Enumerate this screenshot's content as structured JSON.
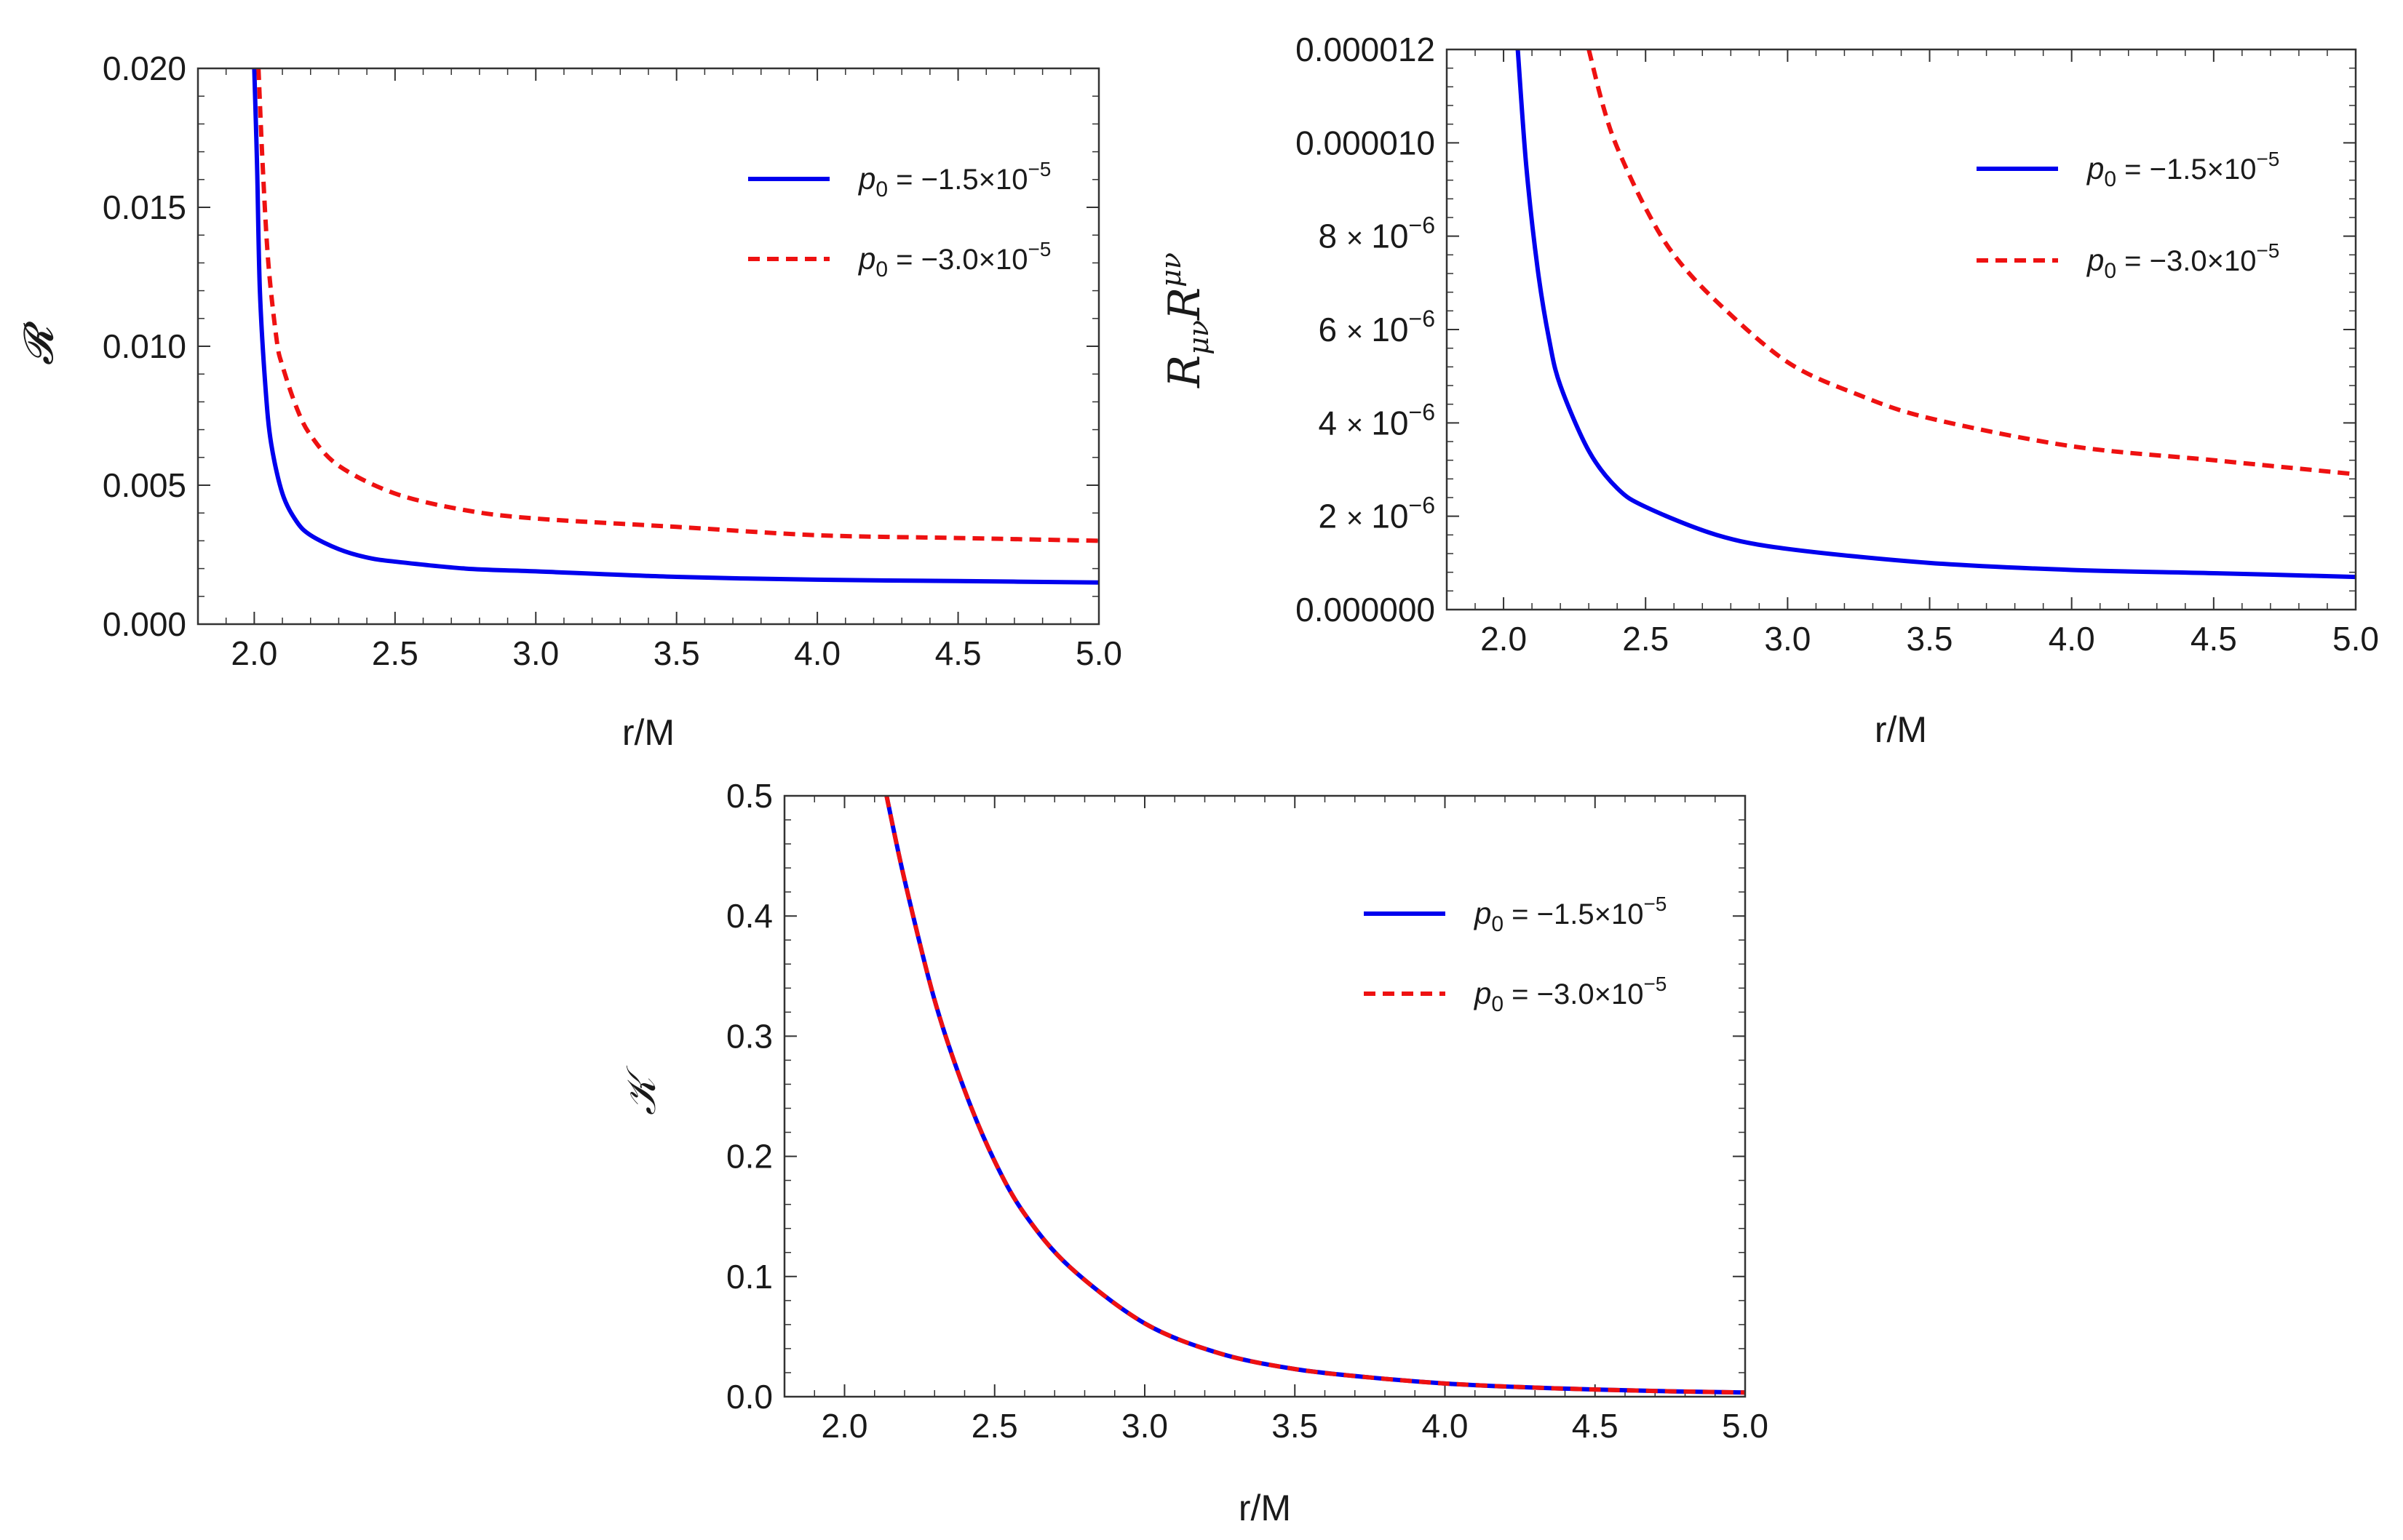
{
  "chart_data": [
    {
      "id": "R",
      "type": "line",
      "title": "",
      "xlabel": "r/M",
      "ylabel": "𝓡",
      "xlim": [
        1.8,
        5.0
      ],
      "ylim": [
        0.0,
        0.02
      ],
      "xticks": [
        2.0,
        2.5,
        3.0,
        3.5,
        4.0,
        4.5,
        5.0
      ],
      "xtick_labels": [
        "2.0",
        "2.5",
        "3.0",
        "3.5",
        "4.0",
        "4.5",
        "5.0"
      ],
      "yticks": [
        0.0,
        0.005,
        0.01,
        0.015,
        0.02
      ],
      "ytick_labels": [
        "0.000",
        "0.005",
        "0.010",
        "0.015",
        "0.020"
      ],
      "legend_position": "top-right",
      "grid": false,
      "series": [
        {
          "name": "p0 = −1.5×10^−5",
          "label_main": "p",
          "label_sub": "0",
          "label_rest": "= −1.5×10",
          "label_sup": "−5",
          "color": "#0000ee",
          "dash": "solid",
          "x": [
            2.0,
            2.01,
            2.02,
            2.04,
            2.06,
            2.1,
            2.15,
            2.2,
            2.3,
            2.4,
            2.5,
            2.75,
            3.0,
            3.5,
            4.0,
            4.5,
            5.0
          ],
          "y": [
            0.02,
            0.0165,
            0.012,
            0.0085,
            0.0065,
            0.0047,
            0.0037,
            0.0032,
            0.0027,
            0.0024,
            0.00225,
            0.002,
            0.0019,
            0.0017,
            0.0016,
            0.00155,
            0.0015
          ]
        },
        {
          "name": "p0 = −3.0×10^−5",
          "label_main": "p",
          "label_sub": "0",
          "label_rest": "= −3.0×10",
          "label_sup": "−5",
          "color": "#ee1111",
          "dash": "dashed",
          "x": [
            2.015,
            2.03,
            2.05,
            2.08,
            2.1,
            2.15,
            2.2,
            2.3,
            2.5,
            2.75,
            3.0,
            3.5,
            4.0,
            4.5,
            5.0
          ],
          "y": [
            0.02,
            0.0165,
            0.013,
            0.0102,
            0.0093,
            0.0078,
            0.0068,
            0.0057,
            0.0047,
            0.0041,
            0.0038,
            0.0035,
            0.0032,
            0.0031,
            0.003
          ]
        }
      ]
    },
    {
      "id": "RR",
      "type": "line",
      "title": "",
      "xlabel": "r/M",
      "ylabel": "R_{μν}R^{μν}",
      "ylabel_main1": "R",
      "ylabel_sub": "μν",
      "ylabel_main2": "R",
      "ylabel_sup": "μν",
      "xlim": [
        1.8,
        5.0
      ],
      "ylim": [
        0.0,
        1.2e-05
      ],
      "xticks": [
        2.0,
        2.5,
        3.0,
        3.5,
        4.0,
        4.5,
        5.0
      ],
      "xtick_labels": [
        "2.0",
        "2.5",
        "3.0",
        "3.5",
        "4.0",
        "4.5",
        "5.0"
      ],
      "yticks": [
        0.0,
        2e-06,
        4e-06,
        6e-06,
        8e-06,
        1e-05,
        1.2e-05
      ],
      "ytick_labels": [
        "0.000000",
        "2×10",
        "4×10",
        "6×10",
        "8×10",
        "0.000010",
        "0.000012"
      ],
      "ytick_sups": [
        "",
        "−6",
        "−6",
        "−6",
        "−6",
        "",
        ""
      ],
      "legend_position": "top-right",
      "grid": false,
      "series": [
        {
          "name": "p0 = −1.5×10^−5",
          "label_main": "p",
          "label_sub": "0",
          "label_rest": "= −1.5×10",
          "label_sup": "−5",
          "color": "#0000ee",
          "dash": "solid",
          "x": [
            2.05,
            2.08,
            2.12,
            2.16,
            2.2,
            2.3,
            2.4,
            2.5,
            2.75,
            3.0,
            3.5,
            4.0,
            4.5,
            5.0
          ],
          "y": [
            1.2e-05,
            9.5e-06,
            7.3e-06,
            5.8e-06,
            4.8e-06,
            3.4e-06,
            2.6e-06,
            2.2e-06,
            1.6e-06,
            1.3e-06,
            1e-06,
            8.5e-07,
            7.8e-07,
            7e-07
          ]
        },
        {
          "name": "p0 = −3.0×10^−5",
          "label_main": "p",
          "label_sub": "0",
          "label_rest": "= −3.0×10",
          "label_sup": "−5",
          "color": "#ee1111",
          "dash": "dashed",
          "x": [
            2.3,
            2.35,
            2.4,
            2.5,
            2.6,
            2.75,
            3.0,
            3.25,
            3.5,
            4.0,
            4.5,
            5.0
          ],
          "y": [
            1.2e-05,
            1.08e-05,
            9.9e-06,
            8.6e-06,
            7.6e-06,
            6.6e-06,
            5.3e-06,
            4.6e-06,
            4.1e-06,
            3.5e-06,
            3.2e-06,
            2.9e-06
          ]
        }
      ]
    },
    {
      "id": "K",
      "type": "line",
      "title": "",
      "xlabel": "r/M",
      "ylabel": "𝒦",
      "xlim": [
        1.8,
        5.0
      ],
      "ylim": [
        0.0,
        0.5
      ],
      "xticks": [
        2.0,
        2.5,
        3.0,
        3.5,
        4.0,
        4.5,
        5.0
      ],
      "xtick_labels": [
        "2.0",
        "2.5",
        "3.0",
        "3.5",
        "4.0",
        "4.5",
        "5.0"
      ],
      "yticks": [
        0.0,
        0.1,
        0.2,
        0.3,
        0.4,
        0.5
      ],
      "ytick_labels": [
        "0.0",
        "0.1",
        "0.2",
        "0.3",
        "0.4",
        "0.5"
      ],
      "legend_position": "top-right",
      "grid": false,
      "series": [
        {
          "name": "p0 = −1.5×10^−5",
          "label_main": "p",
          "label_sub": "0",
          "label_rest": "= −1.5×10",
          "label_sup": "−5",
          "color": "#0000ee",
          "dash": "solid",
          "x": [
            2.14,
            2.2,
            2.3,
            2.4,
            2.5,
            2.6,
            2.75,
            3.0,
            3.25,
            3.5,
            3.75,
            4.0,
            4.25,
            4.5,
            4.75,
            5.0
          ],
          "y": [
            0.5,
            0.43,
            0.33,
            0.255,
            0.196,
            0.152,
            0.108,
            0.061,
            0.036,
            0.023,
            0.016,
            0.011,
            0.008,
            0.006,
            0.0045,
            0.0035
          ]
        },
        {
          "name": "p0 = −3.0×10^−5",
          "label_main": "p",
          "label_sub": "0",
          "label_rest": "= −3.0×10",
          "label_sup": "−5",
          "color": "#ee1111",
          "dash": "dashed",
          "x": [
            2.14,
            2.2,
            2.3,
            2.4,
            2.5,
            2.6,
            2.75,
            3.0,
            3.25,
            3.5,
            3.75,
            4.0,
            4.25,
            4.5,
            4.75,
            5.0
          ],
          "y": [
            0.5,
            0.43,
            0.33,
            0.255,
            0.196,
            0.152,
            0.108,
            0.061,
            0.036,
            0.023,
            0.016,
            0.011,
            0.008,
            0.006,
            0.0045,
            0.0035
          ]
        }
      ]
    }
  ]
}
